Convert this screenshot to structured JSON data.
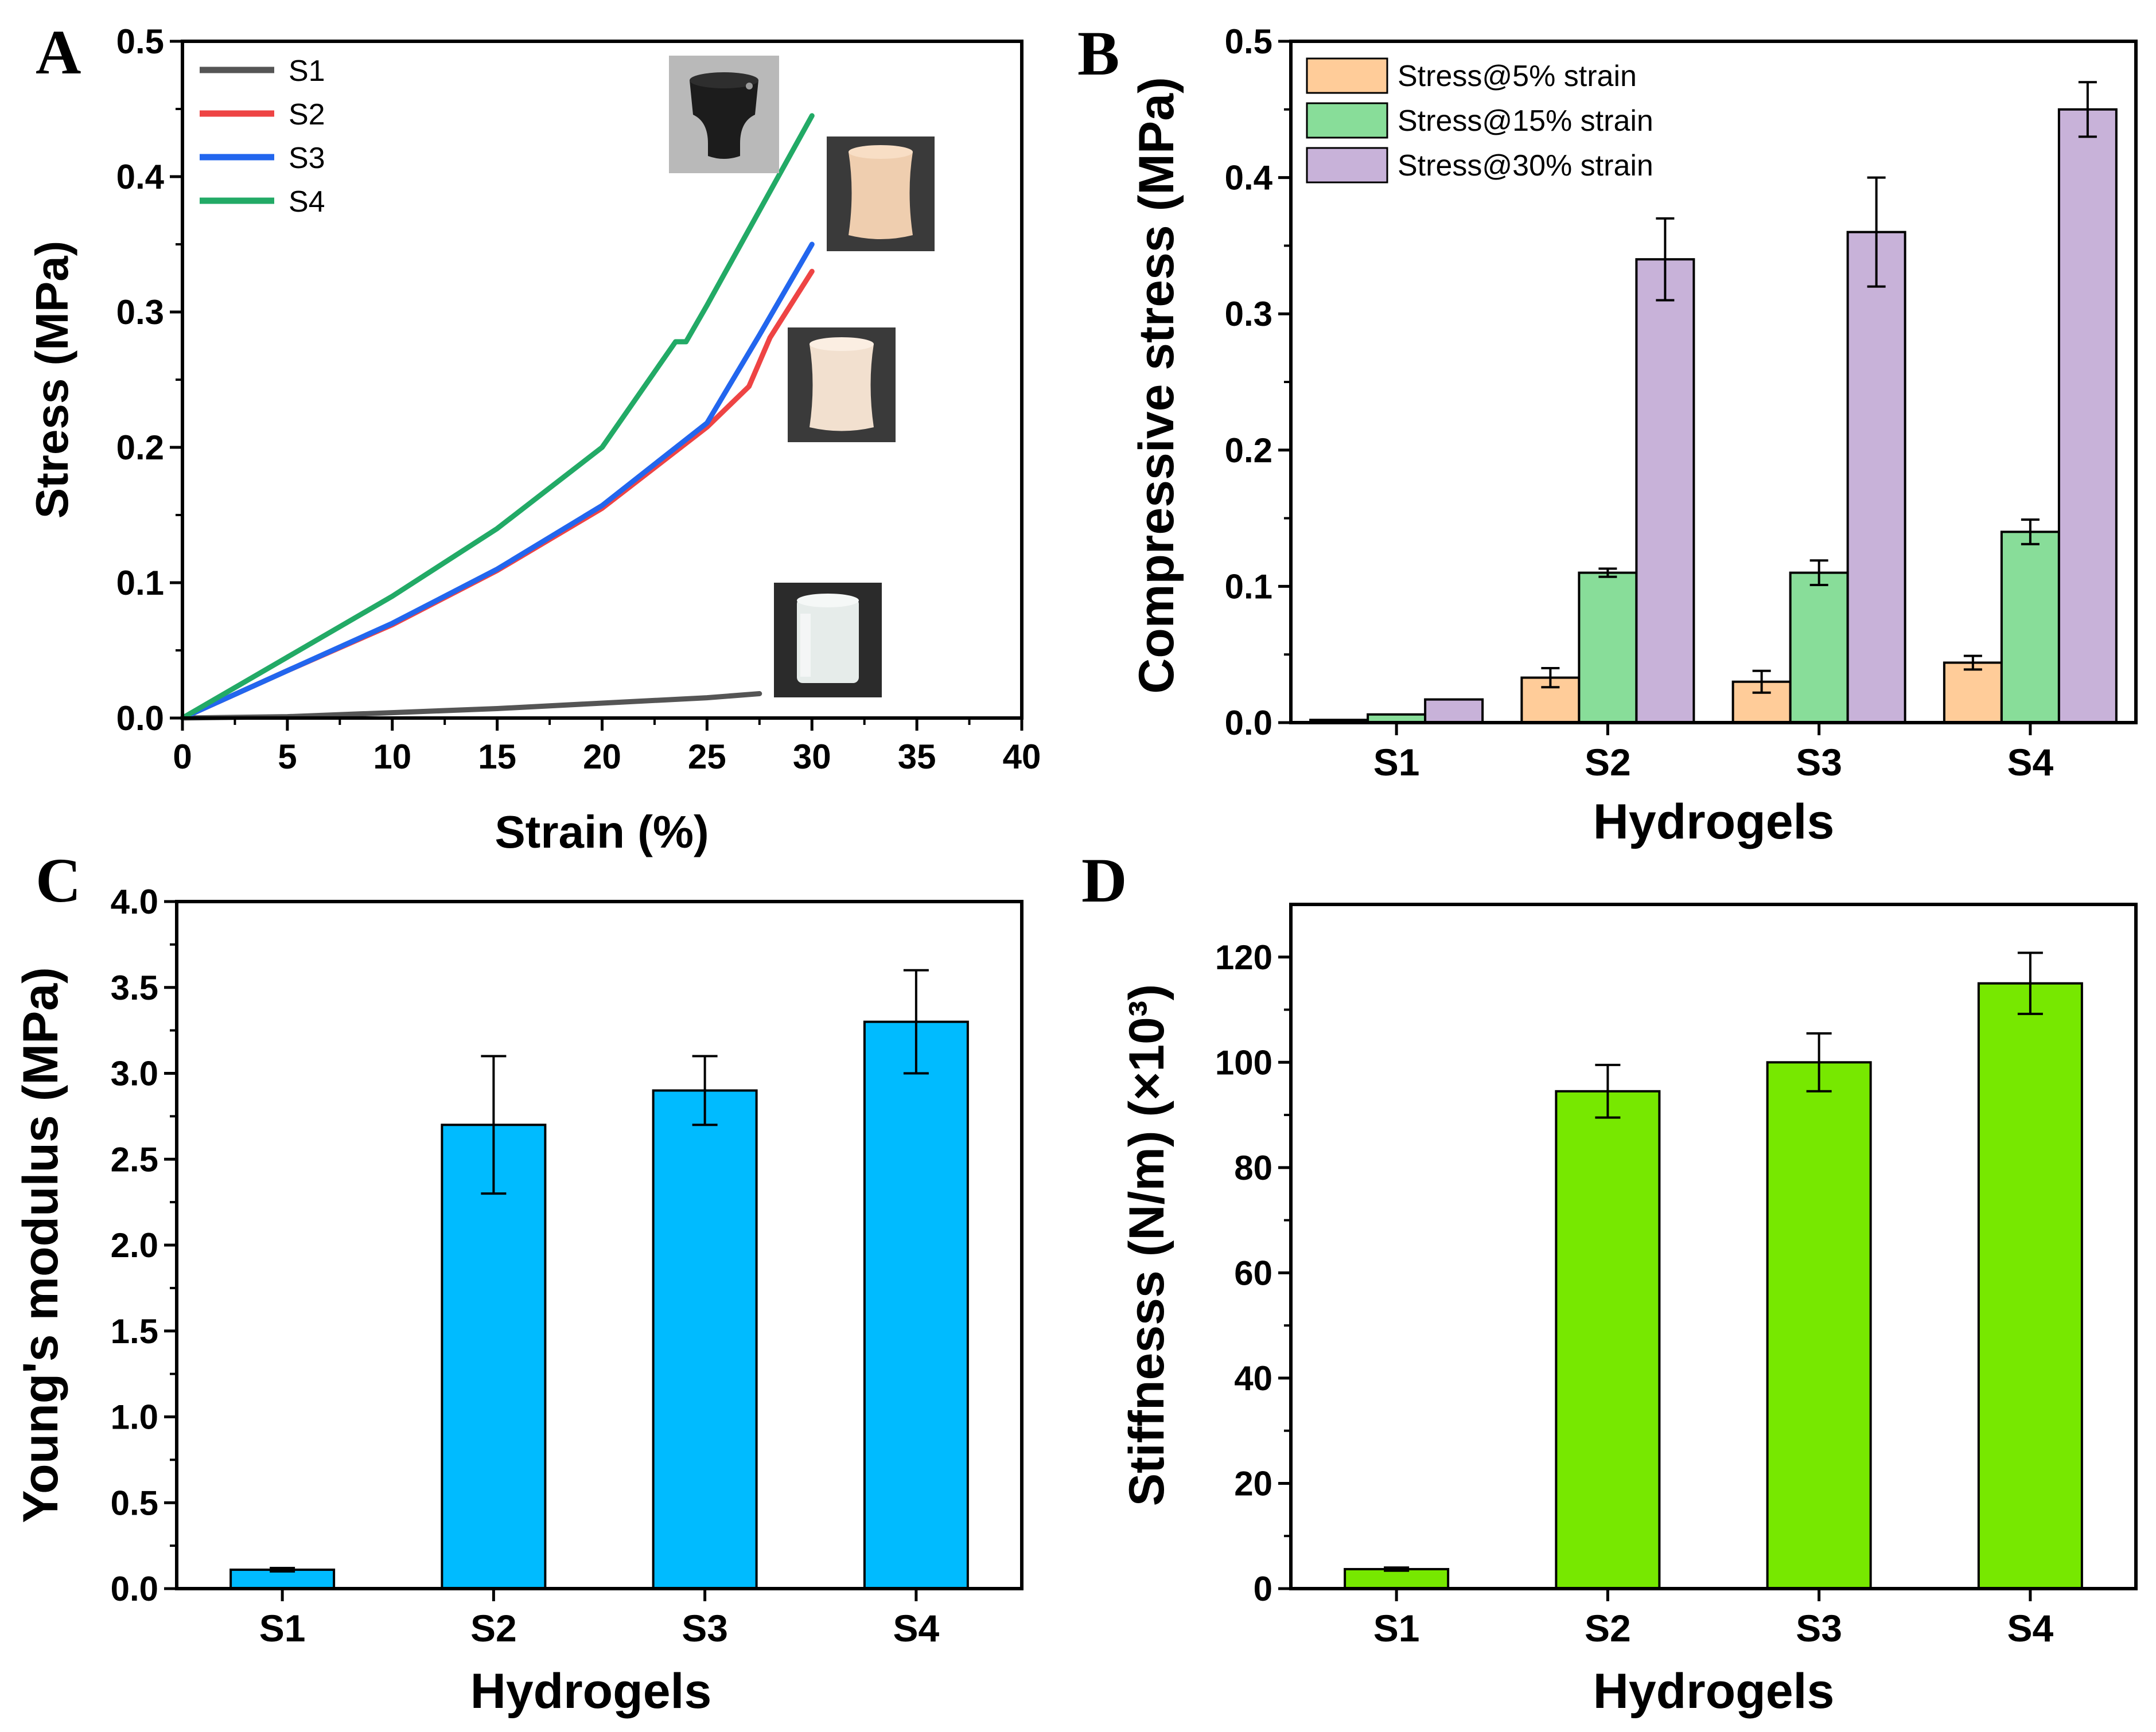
{
  "colors": {
    "S1": "#555555",
    "S2": "#ee4444",
    "S3": "#2266ee",
    "S4": "#22aa66",
    "stress5": "#ffcc99",
    "stress15": "#88dd99",
    "stress30": "#c8b2d9",
    "youngs": "#00bbff",
    "stiffness": "#77e800"
  },
  "chart_data": [
    {
      "panel": "A",
      "type": "line",
      "xlabel": "Strain (%)",
      "ylabel": "Stress (MPa)",
      "xlim": [
        0,
        40
      ],
      "ylim": [
        0,
        0.5
      ],
      "xticks": [
        "0",
        "5",
        "10",
        "15",
        "20",
        "25",
        "30",
        "35",
        "40"
      ],
      "yticks": [
        "0.0",
        "0.1",
        "0.2",
        "0.3",
        "0.4",
        "0.5"
      ],
      "series": [
        {
          "name": "S1",
          "x": [
            0,
            5,
            10,
            15,
            20,
            25,
            27.5
          ],
          "y": [
            0,
            0.001,
            0.004,
            0.007,
            0.011,
            0.015,
            0.018
          ]
        },
        {
          "name": "S2",
          "x": [
            0,
            5,
            10,
            15,
            20,
            25,
            27,
            28,
            30
          ],
          "y": [
            0,
            0.035,
            0.069,
            0.109,
            0.155,
            0.215,
            0.245,
            0.281,
            0.33
          ]
        },
        {
          "name": "S3",
          "x": [
            0,
            5,
            10,
            15,
            20,
            25,
            27.5,
            30
          ],
          "y": [
            0,
            0.035,
            0.07,
            0.11,
            0.157,
            0.218,
            0.283,
            0.35
          ]
        },
        {
          "name": "S4",
          "x": [
            0,
            5,
            10,
            15,
            20,
            23.5,
            24,
            25,
            30
          ],
          "y": [
            0,
            0.045,
            0.09,
            0.14,
            0.2,
            0.278,
            0.278,
            0.305,
            0.445
          ]
        }
      ]
    },
    {
      "panel": "B",
      "type": "bar",
      "xlabel": "Hydrogels",
      "ylabel": "Compressive stress (MPa)",
      "categories": [
        "S1",
        "S2",
        "S3",
        "S4"
      ],
      "ylim": [
        0,
        0.5
      ],
      "yticks": [
        "0.0",
        "0.1",
        "0.2",
        "0.3",
        "0.4",
        "0.5"
      ],
      "series": [
        {
          "name": "Stress@5% strain",
          "values": [
            0.002,
            0.033,
            0.03,
            0.044
          ],
          "errors": [
            0.0005,
            0.007,
            0.008,
            0.005
          ]
        },
        {
          "name": "Stress@15% strain",
          "values": [
            0.006,
            0.11,
            0.11,
            0.14
          ],
          "errors": [
            0.0008,
            0.003,
            0.009,
            0.009
          ]
        },
        {
          "name": "Stress@30% strain",
          "values": [
            0.017,
            0.34,
            0.36,
            0.45
          ],
          "errors": [
            0.001,
            0.03,
            0.04,
            0.02
          ]
        }
      ]
    },
    {
      "panel": "C",
      "type": "bar",
      "xlabel": "Hydrogels",
      "ylabel": "Young's modulus (MPa)",
      "categories": [
        "S1",
        "S2",
        "S3",
        "S4"
      ],
      "ylim": [
        0,
        4.0
      ],
      "yticks": [
        "0.0",
        "0.5",
        "1.0",
        "1.5",
        "2.0",
        "2.5",
        "3.0",
        "3.5",
        "4.0"
      ],
      "values": [
        0.11,
        2.7,
        2.9,
        3.3
      ],
      "errors": [
        0.01,
        0.4,
        0.2,
        0.3
      ]
    },
    {
      "panel": "D",
      "type": "bar",
      "xlabel": "Hydrogels",
      "ylabel": "Stiffnesss (N/m) (×10³)",
      "categories": [
        "S1",
        "S2",
        "S3",
        "S4"
      ],
      "ylim": [
        0,
        130
      ],
      "yticks": [
        "0",
        "20",
        "40",
        "60",
        "80",
        "100",
        "120"
      ],
      "values": [
        3.7,
        94.5,
        100,
        115
      ],
      "errors": [
        0.3,
        5,
        5.5,
        5.8
      ]
    }
  ]
}
